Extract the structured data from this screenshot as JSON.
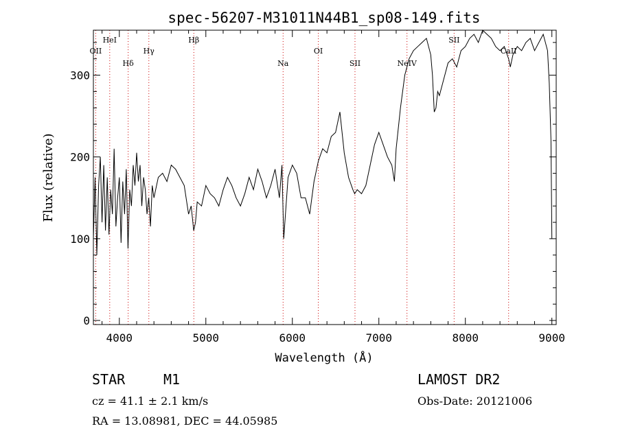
{
  "chart_data": {
    "type": "line",
    "title": "spec-56207-M31011N44B1_sp08-149.fits",
    "xlabel": "Wavelength (Å)",
    "ylabel": "Flux (relative)",
    "xlim": [
      3700,
      9050
    ],
    "ylim": [
      -5,
      355
    ],
    "x_ticks": [
      4000,
      5000,
      6000,
      7000,
      8000,
      9000
    ],
    "y_ticks": [
      0,
      100,
      200,
      300
    ],
    "grid": false,
    "line_color": "#000000",
    "marker_color": "#cc0000",
    "spectral_lines": [
      {
        "label": "OII",
        "wavelength": 3727,
        "row": 3
      },
      {
        "label": "HeI",
        "wavelength": 3889,
        "row": 1
      },
      {
        "label": "Hδ",
        "wavelength": 4102,
        "row": 4
      },
      {
        "label": "Hγ",
        "wavelength": 4341,
        "row": 3
      },
      {
        "label": "Hβ",
        "wavelength": 4861,
        "row": 1
      },
      {
        "label": "Na",
        "wavelength": 5893,
        "row": 4
      },
      {
        "label": "OI",
        "wavelength": 6300,
        "row": 3
      },
      {
        "label": "SII",
        "wavelength": 6724,
        "row": 4
      },
      {
        "label": "NeIV",
        "wavelength": 7325,
        "row": 4
      },
      {
        "label": "SII",
        "wavelength": 7870,
        "row": 1
      },
      {
        "label": "CaII",
        "wavelength": 8500,
        "row": 3
      }
    ],
    "series": [
      {
        "x": [
          3700,
          3720,
          3740,
          3760,
          3780,
          3800,
          3820,
          3840,
          3860,
          3880,
          3900,
          3920,
          3940,
          3960,
          3980,
          4000,
          4020,
          4040,
          4060,
          4080,
          4100,
          4120,
          4140,
          4160,
          4180,
          4200,
          4220,
          4240,
          4260,
          4280,
          4300,
          4320,
          4340,
          4360,
          4380,
          4400,
          4450,
          4500,
          4550,
          4600,
          4650,
          4700,
          4750,
          4800,
          4830,
          4860,
          4880,
          4900,
          4950,
          5000,
          5050,
          5100,
          5150,
          5200,
          5250,
          5300,
          5350,
          5400,
          5450,
          5500,
          5550,
          5600,
          5650,
          5700,
          5750,
          5800,
          5850,
          5880,
          5900,
          5920,
          5950,
          6000,
          6050,
          6100,
          6150,
          6200,
          6250,
          6300,
          6350,
          6400,
          6450,
          6500,
          6550,
          6580,
          6600,
          6650,
          6700,
          6720,
          6750,
          6800,
          6850,
          6900,
          6950,
          7000,
          7050,
          7100,
          7150,
          7180,
          7200,
          7250,
          7300,
          7350,
          7400,
          7450,
          7500,
          7550,
          7600,
          7620,
          7640,
          7660,
          7680,
          7700,
          7750,
          7800,
          7850,
          7900,
          7950,
          8000,
          8050,
          8100,
          8150,
          8200,
          8250,
          8300,
          8350,
          8400,
          8450,
          8500,
          8520,
          8550,
          8600,
          8650,
          8700,
          8750,
          8800,
          8850,
          8900,
          8950,
          8970,
          8990,
          9000
        ],
        "y": [
          100,
          175,
          80,
          165,
          200,
          120,
          190,
          110,
          175,
          105,
          160,
          130,
          210,
          115,
          150,
          175,
          95,
          170,
          130,
          185,
          88,
          160,
          140,
          190,
          165,
          205,
          170,
          190,
          140,
          175,
          160,
          130,
          150,
          115,
          165,
          150,
          175,
          180,
          170,
          190,
          185,
          175,
          165,
          130,
          140,
          110,
          120,
          145,
          140,
          165,
          155,
          150,
          140,
          160,
          175,
          165,
          150,
          140,
          155,
          175,
          160,
          185,
          170,
          150,
          165,
          185,
          150,
          190,
          100,
          130,
          175,
          190,
          180,
          150,
          150,
          130,
          170,
          195,
          210,
          205,
          225,
          230,
          255,
          225,
          205,
          175,
          160,
          155,
          160,
          155,
          165,
          190,
          215,
          230,
          215,
          200,
          190,
          170,
          210,
          260,
          300,
          320,
          330,
          335,
          340,
          345,
          325,
          300,
          255,
          260,
          280,
          275,
          295,
          315,
          320,
          310,
          330,
          335,
          345,
          350,
          340,
          355,
          350,
          345,
          335,
          330,
          335,
          320,
          310,
          325,
          335,
          330,
          340,
          345,
          330,
          340,
          350,
          330,
          290,
          220,
          100
        ]
      }
    ],
    "info": {
      "object_class": "STAR",
      "subclass": "M1",
      "survey": "LAMOST DR2",
      "velocity": "cz = 41.1 ± 2.1 km/s",
      "obs_date": "Obs-Date: 20121006",
      "coords": "RA =  13.08981, DEC =  44.05985"
    }
  }
}
